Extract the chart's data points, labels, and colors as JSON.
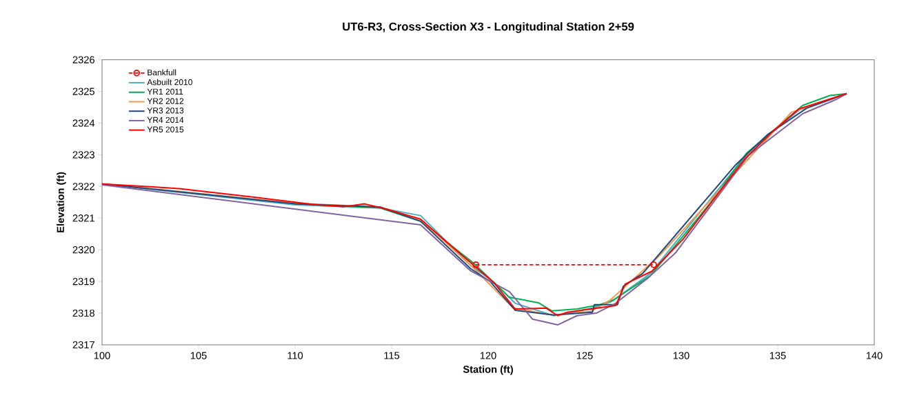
{
  "chart_data": {
    "type": "line",
    "title": "UT6-R3, Cross-Section X3 - Longitudinal Station 2+59",
    "xlabel": "Station (ft)",
    "ylabel": "Elevation (ft)",
    "xlim": [
      100,
      140
    ],
    "xticks": [
      100,
      105,
      110,
      115,
      120,
      125,
      130,
      135,
      140
    ],
    "ylim": [
      2317,
      2326
    ],
    "yticks": [
      2317,
      2318,
      2319,
      2320,
      2321,
      2322,
      2323,
      2324,
      2325,
      2326
    ],
    "legend": "top left",
    "grid": false,
    "series": [
      {
        "name": "Bankfull",
        "color": "#ff0000",
        "marker": "circle",
        "line_style": "dashed",
        "x": [
          119.36,
          128.57
        ],
        "values": [
          2319.53,
          2319.53
        ]
      },
      {
        "name": "Asbuilt 2010",
        "color": "#4bacc6",
        "x": [
          100,
          105,
          110,
          114.4,
          116.5,
          119.1,
          120.3,
          121.4,
          123.4,
          125.4,
          126.4,
          128.4,
          133.5,
          136.1,
          138.57
        ],
        "values": [
          2322.08,
          2321.75,
          2321.42,
          2321.32,
          2321.08,
          2319.5,
          2318.98,
          2318.31,
          2317.92,
          2318.16,
          2318.37,
          2319.25,
          2323.1,
          2324.41,
          2324.93
        ]
      },
      {
        "name": "YR1 2011",
        "color": "#00b050",
        "x": [
          110,
          114.4,
          116.5,
          119.3,
          121.1,
          122.6,
          123.3,
          124.6,
          125.8,
          126.5,
          128.4,
          131.5,
          133.4,
          136.3,
          137.7,
          138.57
        ],
        "values": [
          2321.45,
          2321.32,
          2320.9,
          2319.55,
          2318.5,
          2318.33,
          2318.07,
          2318.13,
          2318.27,
          2318.42,
          2319.18,
          2321.47,
          2323.06,
          2324.56,
          2324.87,
          2324.93
        ]
      },
      {
        "name": "YR2 2012",
        "color": "#f79646",
        "x": [
          100,
          105,
          110,
          114.4,
          116.5,
          119.2,
          121.3,
          123.3,
          125.3,
          126.3,
          127.6,
          128.8,
          135.7,
          138.57
        ],
        "values": [
          2322.08,
          2321.78,
          2321.47,
          2321.35,
          2320.95,
          2319.45,
          2318.16,
          2317.94,
          2318.05,
          2318.4,
          2319.12,
          2319.77,
          2324.34,
          2324.93
        ]
      },
      {
        "name": "YR3 2013",
        "color": "#1f497d",
        "x": [
          100,
          105,
          110,
          114.4,
          116.5,
          119.1,
          120.1,
          121.4,
          123.4,
          125.4,
          125.5,
          126.7,
          127.0,
          128.0,
          132.8,
          134.5,
          136.5,
          138.57
        ],
        "values": [
          2322.08,
          2321.77,
          2321.45,
          2321.35,
          2320.9,
          2319.4,
          2319.0,
          2318.09,
          2317.94,
          2318.03,
          2318.27,
          2318.27,
          2318.85,
          2319.25,
          2322.67,
          2323.65,
          2324.47,
          2324.93
        ]
      },
      {
        "name": "YR4 2014",
        "color": "#8064a2",
        "x": [
          100,
          116.5,
          119.1,
          121.1,
          122.3,
          123.6,
          124.6,
          125.6,
          126.6,
          128.3,
          129.7,
          133.5,
          136.3,
          138.0,
          138.57
        ],
        "values": [
          2322.05,
          2320.79,
          2319.33,
          2318.68,
          2317.81,
          2317.63,
          2317.92,
          2318.0,
          2318.31,
          2319.12,
          2319.9,
          2322.99,
          2324.3,
          2324.74,
          2324.93
        ]
      },
      {
        "name": "YR5 2015",
        "color": "#ff0000",
        "x": [
          100,
          102.5,
          104,
          107.9,
          111.1,
          112.5,
          113.6,
          114.7,
          116.5,
          117.6,
          120.3,
          121.4,
          123.0,
          123.6,
          124.1,
          126.6,
          127.1,
          128.5,
          130.1,
          133.3,
          134.7,
          136.1,
          138.57
        ],
        "values": [
          2322.08,
          2321.99,
          2321.93,
          2321.66,
          2321.42,
          2321.36,
          2321.45,
          2321.29,
          2320.97,
          2320.38,
          2318.96,
          2318.13,
          2318.16,
          2317.92,
          2318.03,
          2318.24,
          2318.92,
          2319.33,
          2320.34,
          2322.88,
          2323.71,
          2324.45,
          2324.93
        ]
      }
    ]
  }
}
